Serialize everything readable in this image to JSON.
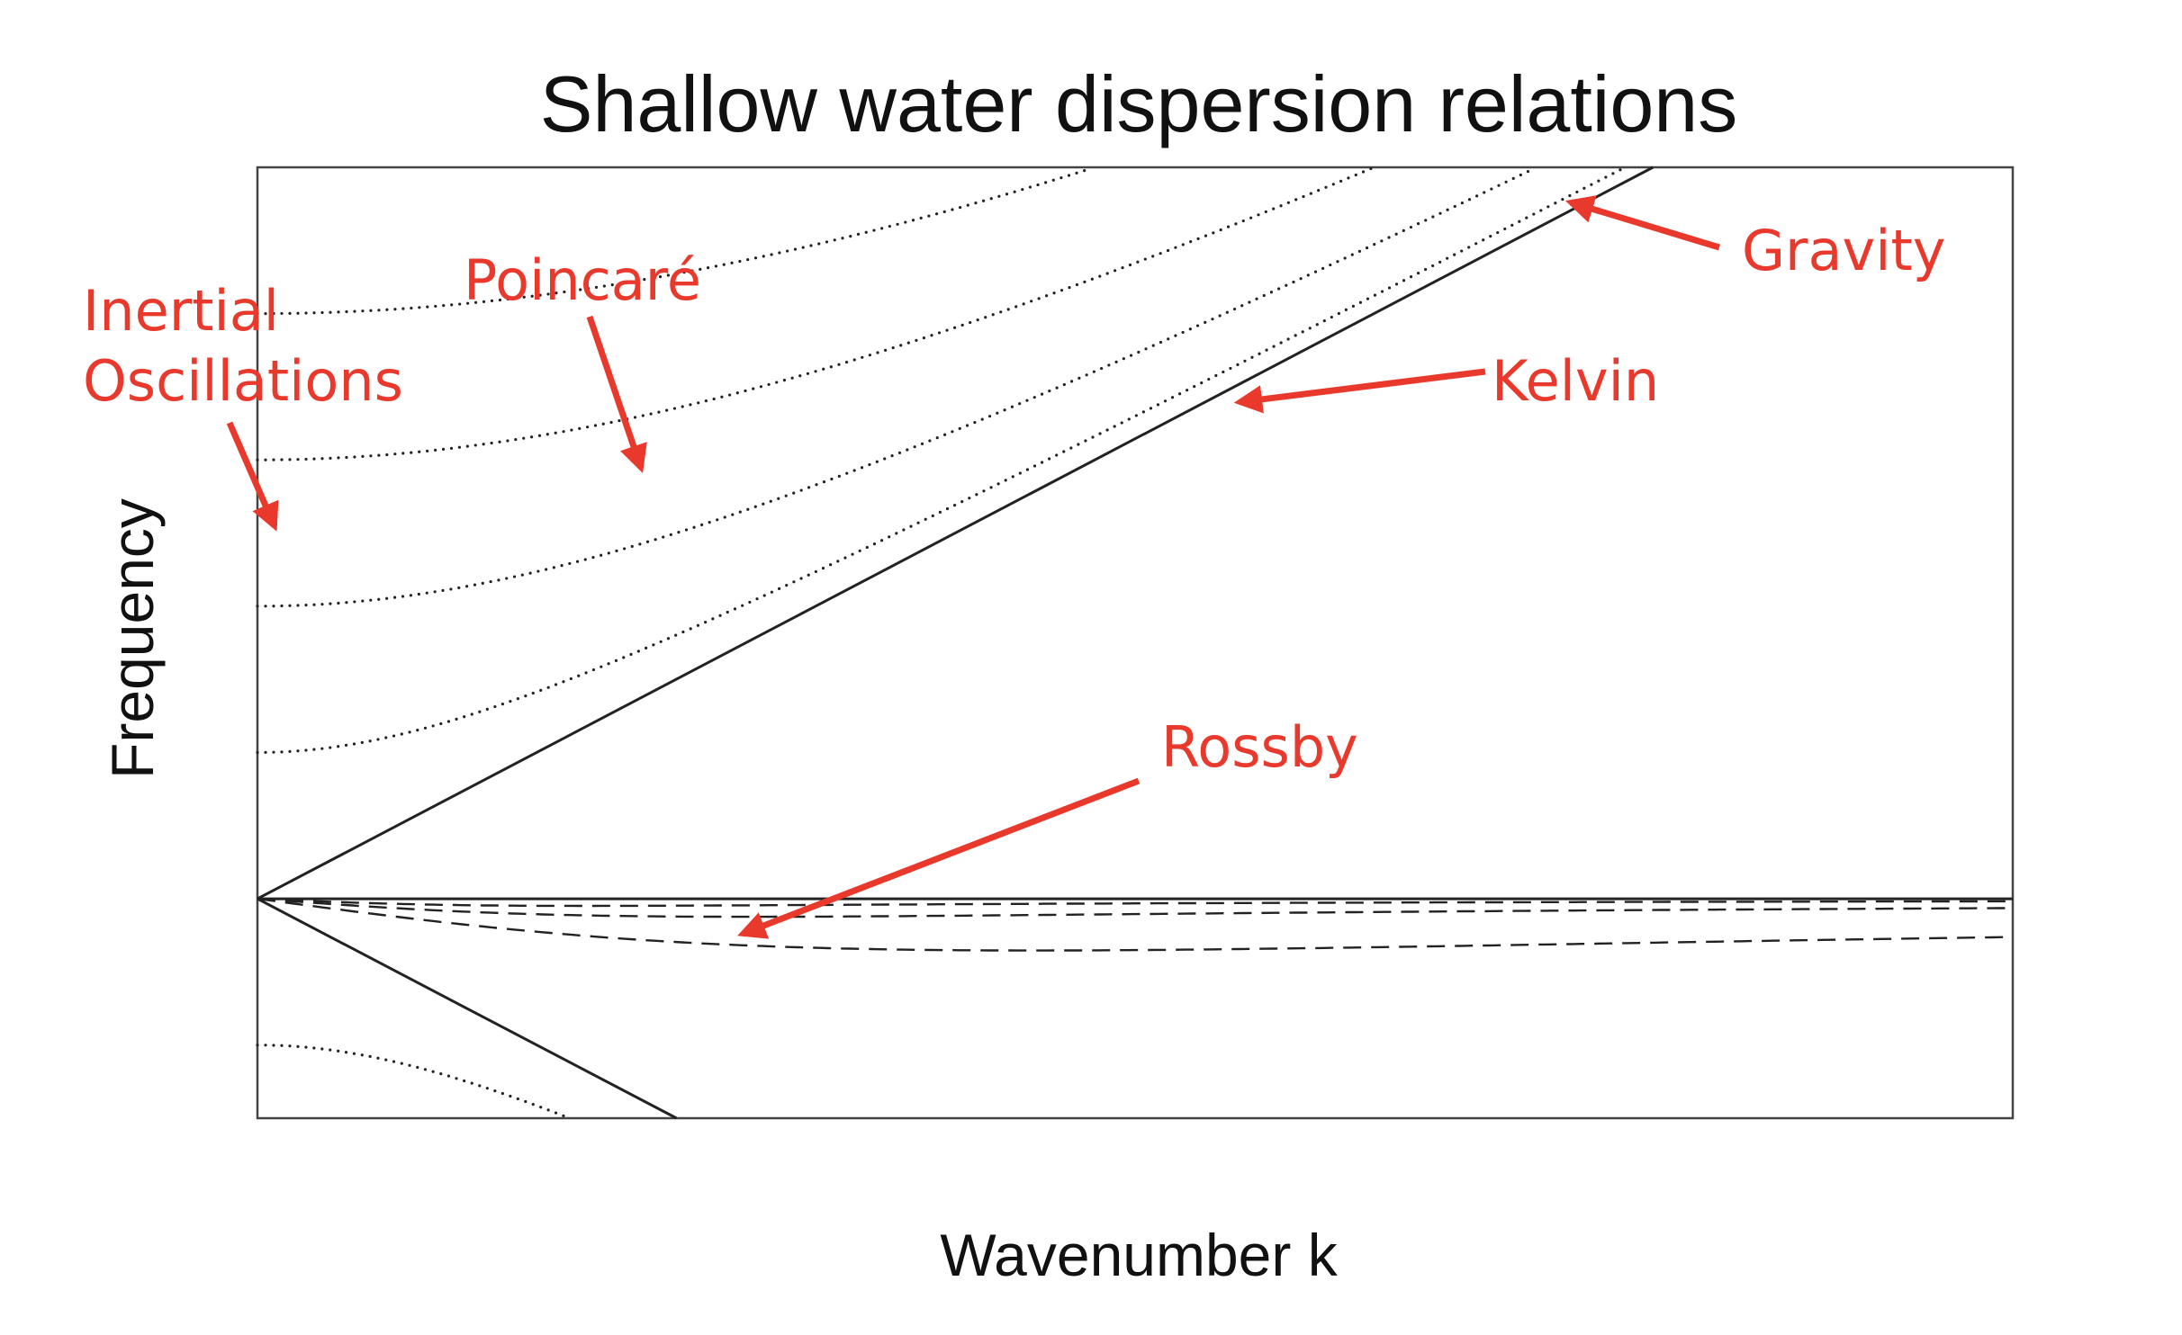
{
  "colors": {
    "annotation": "#e8392c",
    "curve": "#222222",
    "text": "#111111"
  },
  "chart_data": {
    "type": "line",
    "title": "Shallow water dispersion relations",
    "xlabel": "Wavenumber k",
    "ylabel": "Frequency",
    "grid": false,
    "xticks": "none",
    "yticks": "none",
    "xlim": [
      0,
      8
    ],
    "ylim": [
      -1.5,
      5
    ],
    "series": [
      {
        "type": "kelvin",
        "style": "solid",
        "values": {
          "x": [
            0,
            6.36
          ],
          "y": [
            0,
            5
          ]
        }
      },
      {
        "type": "gravity",
        "style": "solid",
        "values": {
          "x": [
            0,
            1.91
          ],
          "y": [
            0,
            -1.5
          ]
        }
      },
      {
        "type": "zero-line",
        "style": "solid",
        "values": {
          "x": [
            0,
            8
          ],
          "y": [
            0,
            0
          ]
        }
      },
      {
        "type": "poincare",
        "style": "dotted",
        "mode": 1,
        "values": {
          "f0": 1.0,
          "c": 0.786,
          "kmax": 6.3
        }
      },
      {
        "type": "poincare",
        "style": "dotted",
        "mode": 2,
        "values": {
          "f0": 2.0,
          "c": 0.786,
          "kmax": 6.3
        }
      },
      {
        "type": "poincare",
        "style": "dotted",
        "mode": 3,
        "values": {
          "f0": 3.0,
          "c": 0.786,
          "kmax": 6.3
        }
      },
      {
        "type": "poincare",
        "style": "dotted",
        "mode": 0,
        "values": {
          "f0": 4.0,
          "c": 0.786,
          "kmax": 6.3
        }
      },
      {
        "type": "poincare-negative",
        "style": "dotted",
        "values": {
          "f0": -1.0,
          "c": 0.786,
          "kmax": 1.4
        }
      },
      {
        "type": "rossby",
        "style": "dashed",
        "mode": 1,
        "values": {
          "a": 0.2,
          "b": 0.08
        }
      },
      {
        "type": "rossby",
        "style": "dashed",
        "mode": 2,
        "values": {
          "a": 0.11,
          "b": 0.2
        }
      },
      {
        "type": "rossby",
        "style": "dashed",
        "mode": 3,
        "values": {
          "a": 0.065,
          "b": 0.45
        }
      }
    ],
    "annotations": [
      {
        "text": "Inertial",
        "target": "inertial oscillations at k = 0"
      },
      {
        "text": "Oscillations",
        "target": "inertial oscillations at k = 0"
      },
      {
        "text": "Poincaré",
        "target": "first Poincaré curve"
      },
      {
        "text": "Gravity",
        "target": "upper Poincaré curves converging to Kelvin line"
      },
      {
        "text": "Kelvin",
        "target": "Kelvin line"
      },
      {
        "text": "Rossby",
        "target": "Rossby curves"
      }
    ]
  }
}
